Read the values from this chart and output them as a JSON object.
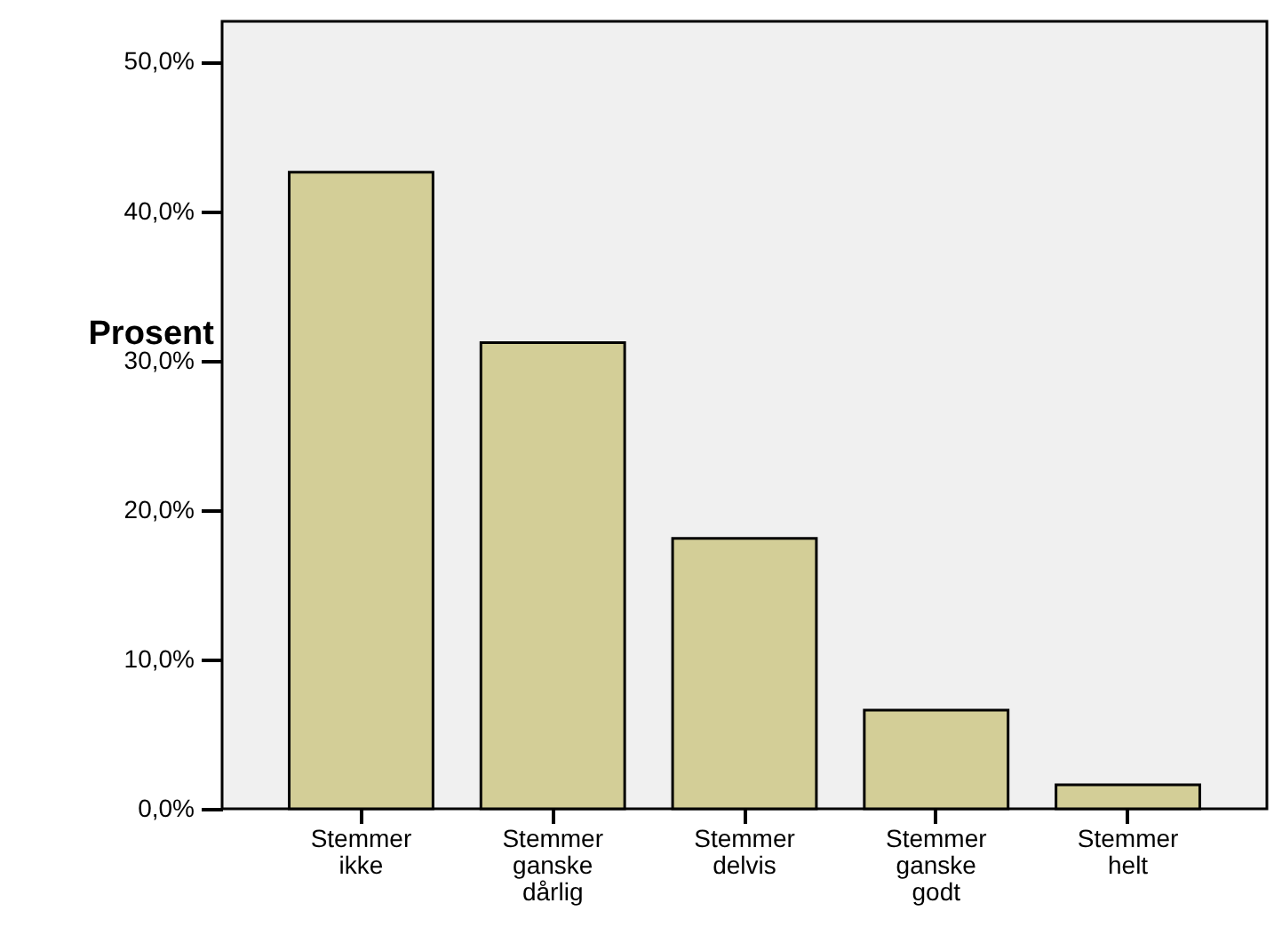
{
  "chart_data": {
    "type": "bar",
    "ylabel": "Prosent",
    "categories": [
      "Stemmer ikke",
      "Stemmer ganske dårlig",
      "Stemmer delvis",
      "Stemmer ganske godt",
      "Stemmer helt"
    ],
    "values": [
      42.6,
      31.2,
      18.1,
      6.6,
      1.6
    ],
    "color": "#d3ce97",
    "ylim": [
      0,
      52.7
    ],
    "yticks": [
      {
        "value": 0,
        "label": "0,0%"
      },
      {
        "value": 10,
        "label": "10,0%"
      },
      {
        "value": 20,
        "label": "20,0%"
      },
      {
        "value": 30,
        "label": "30,0%"
      },
      {
        "value": 40,
        "label": "40,0%"
      },
      {
        "value": 50,
        "label": "50,0%"
      }
    ],
    "grid": false
  }
}
